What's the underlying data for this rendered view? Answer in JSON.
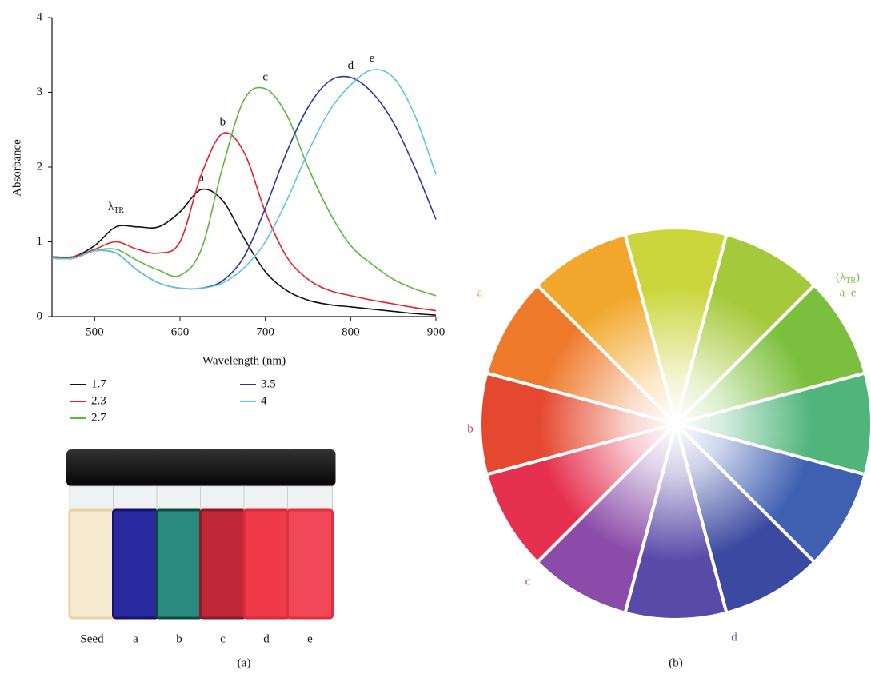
{
  "chart_data": {
    "type": "line",
    "xlabel": "Wavelength (nm)",
    "ylabel": "Absorbance",
    "x": [
      450,
      475,
      500,
      525,
      550,
      575,
      600,
      625,
      650,
      675,
      700,
      725,
      750,
      775,
      800,
      825,
      850,
      875,
      900
    ],
    "xlim": [
      450,
      900
    ],
    "xticks": [
      500,
      600,
      700,
      800,
      900
    ],
    "ylim": [
      0,
      4
    ],
    "yticks": [
      0,
      1,
      2,
      3,
      4
    ],
    "series": [
      {
        "name": "1.7",
        "color": "#111111",
        "peak_label": "a",
        "values": [
          0.8,
          0.8,
          0.95,
          1.2,
          1.2,
          1.2,
          1.4,
          1.7,
          1.55,
          1.05,
          0.6,
          0.35,
          0.22,
          0.16,
          0.13,
          0.1,
          0.07,
          0.04,
          0.02
        ]
      },
      {
        "name": "2.3",
        "color": "#e8202a",
        "peak_label": "b",
        "values": [
          0.8,
          0.8,
          0.9,
          1.0,
          0.9,
          0.85,
          1.0,
          1.9,
          2.45,
          2.2,
          1.4,
          0.8,
          0.5,
          0.35,
          0.28,
          0.22,
          0.17,
          0.12,
          0.08
        ]
      },
      {
        "name": "2.7",
        "color": "#5cb83c",
        "peak_label": "c",
        "values": [
          0.78,
          0.78,
          0.88,
          0.9,
          0.75,
          0.62,
          0.55,
          0.9,
          2.0,
          2.9,
          3.05,
          2.7,
          2.0,
          1.4,
          0.95,
          0.7,
          0.5,
          0.37,
          0.28
        ]
      },
      {
        "name": "3.5",
        "color": "#2a3a94",
        "peak_label": "d",
        "values": [
          0.78,
          0.78,
          0.88,
          0.85,
          0.62,
          0.45,
          0.38,
          0.38,
          0.48,
          0.8,
          1.45,
          2.2,
          2.8,
          3.15,
          3.2,
          3.0,
          2.6,
          2.0,
          1.3
        ]
      },
      {
        "name": "4",
        "color": "#5ec4e0",
        "peak_label": "e",
        "values": [
          0.78,
          0.78,
          0.88,
          0.85,
          0.62,
          0.45,
          0.38,
          0.38,
          0.45,
          0.65,
          1.0,
          1.55,
          2.2,
          2.75,
          3.1,
          3.3,
          3.2,
          2.7,
          1.9
        ]
      }
    ],
    "annotation": {
      "symbol": "λ",
      "subscript": "TR"
    }
  },
  "vials": {
    "labels": [
      "Seed",
      "a",
      "b",
      "c",
      "d",
      "e"
    ]
  },
  "color_wheel": {
    "a": "a",
    "b": "b",
    "c": "c",
    "d": "d",
    "tr_prefix": "(λ",
    "tr_subscript": "TR",
    "tr_suffix": ")",
    "tr_range": "a–e"
  },
  "panels": [
    "(a)",
    "(b)"
  ]
}
